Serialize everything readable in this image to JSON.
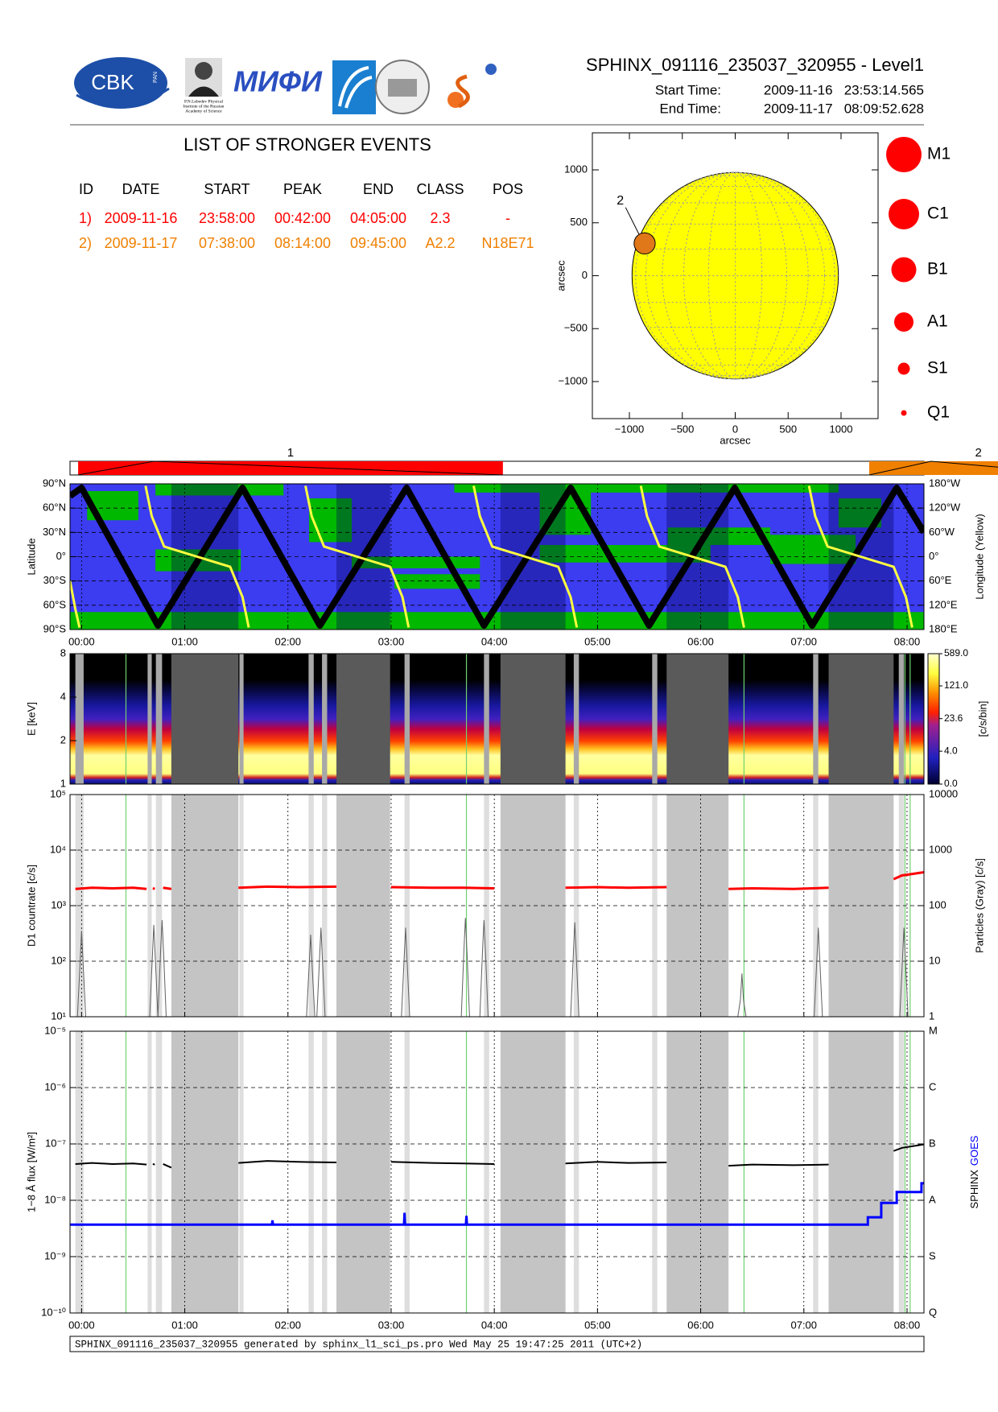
{
  "header": {
    "title": "SPHINX_091116_235037_320955 - Level1",
    "start_label": "Start Time:",
    "start": "2009-11-16   23:53:14.565",
    "end_label": "End Time:",
    "end": "2009-11-17   08:09:52.628"
  },
  "logos": {
    "cbk": "CBK",
    "pan": "PAN",
    "lebedev": [
      "P.N.Lebedev Physical",
      "Institute of the Russian",
      "Academy of Science"
    ],
    "mifi": "МИФИ"
  },
  "events_table": {
    "title": "LIST OF STRONGER EVENTS",
    "columns": [
      "ID",
      "DATE",
      "START",
      "PEAK",
      "END",
      "CLASS",
      "POS"
    ],
    "rows": [
      [
        "1)",
        "2009-11-16",
        "23:58:00",
        "00:42:00",
        "04:05:00",
        "2.3",
        "-"
      ],
      [
        "2)",
        "2009-11-17",
        "07:38:00",
        "08:14:00",
        "09:45:00",
        "A2.2",
        "N18E71"
      ]
    ]
  },
  "footer": "SPHINX_091116_235037_320955 generated by sphinx_l1_sci_ps.pro Wed May 25 19:47:25 2011 (UTC+2)",
  "chart_data": [
    {
      "type": "scatter",
      "xlabel": "arcsec",
      "ylabel": "arcsec",
      "xlim": [
        -1350,
        1350
      ],
      "ylim": [
        -1350,
        1350
      ],
      "xticks": [
        {
          "value": -1000,
          "label": "−1000"
        },
        {
          "value": -500,
          "label": "−500"
        },
        0,
        500,
        1000
      ],
      "yticks": [
        {
          "value": -1000,
          "label": "−1000"
        },
        {
          "value": -500,
          "label": "−500"
        },
        0,
        500,
        1000
      ],
      "disk_radius": 975,
      "disk_color": "#ffff00",
      "grid_color": "#999999",
      "x": [
        -856
      ],
      "y": [
        305
      ],
      "point_labels": [
        "2"
      ],
      "point_radius": 100,
      "point_color": "#e0781a",
      "classes": [
        "M1",
        "C1",
        "B1",
        "A1",
        "S1",
        "Q1"
      ],
      "class_color": "#ff0000"
    },
    {
      "type": "timeline",
      "xlim": [
        -0.112,
        8.164
      ],
      "events": [
        {
          "label": "1",
          "start": -0.0333,
          "peak": 0.7,
          "end": 4.0833,
          "color": "#ff0000"
        },
        {
          "label": "2",
          "start": 7.6333,
          "peak": 8.2333,
          "end": 9.75,
          "color": "#f08000"
        }
      ]
    },
    {
      "type": "line",
      "ylabel": "Latitude",
      "y2label": "Longitude (Yellow)",
      "background": "#3c3cf0",
      "region_color": "#00b800",
      "xlim": [
        -0.112,
        8.164
      ],
      "ylim": [
        -90,
        90
      ],
      "y2lim": [
        180,
        -180
      ],
      "xticks": [
        {
          "value": 0,
          "label": "00:00"
        },
        {
          "value": 1,
          "label": "01:00"
        },
        {
          "value": 2,
          "label": "02:00"
        },
        {
          "value": 3,
          "label": "03:00"
        },
        {
          "value": 4,
          "label": "04:00"
        },
        {
          "value": 5,
          "label": "05:00"
        },
        {
          "value": 6,
          "label": "06:00"
        },
        {
          "value": 7,
          "label": "07:00"
        },
        {
          "value": 8,
          "label": "08:00"
        }
      ],
      "yticks": [
        {
          "value": -90,
          "label": "90°S"
        },
        {
          "value": -60,
          "label": "60°S"
        },
        {
          "value": -30,
          "label": "30°S"
        },
        {
          "value": 0,
          "label": "0°"
        },
        {
          "value": 30,
          "label": "30°N"
        },
        {
          "value": 60,
          "label": "60°N"
        },
        {
          "value": 90,
          "label": "90°N"
        }
      ],
      "y2ticks": [
        {
          "value": -180,
          "label": "180°W"
        },
        {
          "value": -120,
          "label": "120°W"
        },
        {
          "value": -60,
          "label": "60°W"
        },
        {
          "value": 0,
          "label": "0°"
        },
        {
          "value": 60,
          "label": "60°E"
        },
        {
          "value": 120,
          "label": "120°E"
        },
        {
          "value": 180,
          "label": "180°E"
        }
      ],
      "series": [
        {
          "color": "#000000",
          "x": [
            -0.112,
            0.0,
            0.74,
            1.56,
            2.31,
            3.15,
            3.9,
            4.74,
            5.5,
            6.33,
            7.08,
            7.9,
            8.164
          ],
          "values": [
            75,
            85,
            -85,
            85,
            -85,
            85,
            -85,
            85,
            -85,
            85,
            -85,
            85,
            30
          ]
        },
        {
          "color": "#ffff40",
          "axis": "y2",
          "x": [
            -0.112,
            -0.06,
            -0.02,
            null,
            0.62,
            0.68,
            0.8,
            1.12,
            1.44,
            1.56,
            1.62,
            null,
            2.17,
            2.23,
            2.35,
            2.67,
            2.99,
            3.11,
            3.17,
            null,
            3.8,
            3.86,
            3.98,
            4.3,
            4.62,
            4.74,
            4.8,
            null,
            5.42,
            5.48,
            5.6,
            5.92,
            6.24,
            6.36,
            6.42,
            null,
            7.05,
            7.11,
            7.23,
            7.55,
            7.87,
            7.99,
            8.05
          ],
          "values": [
            60,
            130,
            175,
            null,
            -175,
            -100,
            -25,
            0,
            25,
            100,
            175,
            null,
            -175,
            -100,
            -25,
            0,
            25,
            100,
            175,
            null,
            -175,
            -100,
            -25,
            0,
            25,
            100,
            175,
            null,
            -175,
            -100,
            -25,
            0,
            25,
            100,
            175,
            null,
            -175,
            -100,
            -25,
            0,
            25,
            100,
            175
          ]
        }
      ]
    },
    {
      "type": "heatmap",
      "ylabel": "E [keV]",
      "clabel": "[c/s/bin]",
      "xlim": [
        -0.112,
        8.164
      ],
      "ylim": [
        1,
        8
      ],
      "log_y": true,
      "yticks": [
        1,
        2,
        4,
        8
      ],
      "clim": [
        0,
        589
      ],
      "cscale": "log1p",
      "cticks": [
        {
          "value": 0,
          "label": "0.0"
        },
        {
          "value": 4,
          "label": "4.0"
        },
        {
          "value": 23.6,
          "label": "23.6"
        },
        {
          "value": 121,
          "label": "121.0"
        },
        {
          "value": 589,
          "label": "589.0"
        }
      ],
      "dark_gaps": [
        [
          0.87,
          1.52
        ],
        [
          2.47,
          2.99
        ],
        [
          4.06,
          4.69
        ],
        [
          5.67,
          6.27
        ],
        [
          7.24,
          7.87
        ]
      ],
      "light_gaps": [
        [
          -0.06,
          0.02
        ],
        [
          0.64,
          0.68
        ],
        [
          0.72,
          0.78
        ],
        [
          1.53,
          1.57
        ],
        [
          2.2,
          2.25
        ],
        [
          2.33,
          2.38
        ],
        [
          3.13,
          3.18
        ],
        [
          3.9,
          3.95
        ],
        [
          4.77,
          4.82
        ],
        [
          5.53,
          5.58
        ],
        [
          7.09,
          7.14
        ],
        [
          7.92,
          7.97
        ]
      ],
      "green_lines": [
        0.43,
        3.73,
        6.42,
        7.98,
        8.03
      ]
    },
    {
      "type": "line",
      "ylabel": "D1 countrate [c/s]",
      "y2label": "Particles (Gray) [c/s]",
      "xlim": [
        -0.112,
        8.164
      ],
      "log_y": true,
      "ylim": [
        10,
        100000
      ],
      "y2lim": [
        1,
        10000
      ],
      "yticks": [
        {
          "value": 10,
          "label": "10¹"
        },
        {
          "value": 100,
          "label": "10²"
        },
        {
          "value": 1000,
          "label": "10³"
        },
        {
          "value": 10000,
          "label": "10⁴"
        },
        {
          "value": 100000,
          "label": "10⁵"
        }
      ],
      "y2ticks": [
        1,
        10,
        100,
        1000,
        10000
      ],
      "series": [
        {
          "color": "#ff0000",
          "x": [
            -0.06,
            0.1,
            0.3,
            0.5,
            0.63,
            null,
            0.69,
            0.71,
            null,
            0.79,
            0.87,
            null,
            1.52,
            1.8,
            2.1,
            2.47,
            null,
            3.0,
            3.4,
            3.7,
            4.0,
            null,
            4.69,
            5.0,
            5.3,
            5.67,
            null,
            6.27,
            6.5,
            6.9,
            7.24,
            null,
            7.87,
            7.95,
            8.0,
            8.164
          ],
          "values": [
            2000,
            2100,
            2050,
            2100,
            2000,
            null,
            2050,
            2000,
            null,
            2100,
            2000,
            null,
            2100,
            2200,
            2150,
            2200,
            null,
            2150,
            2100,
            2100,
            2050,
            null,
            2100,
            2150,
            2100,
            2150,
            null,
            2000,
            2050,
            2000,
            2100,
            null,
            3000,
            3500,
            3600,
            4000
          ]
        },
        {
          "color": "#606060",
          "axis": "y2",
          "x": [
            -0.04,
            -0.015,
            0.0,
            0.015,
            0.04,
            0.66,
            0.685,
            0.7,
            0.715,
            0.74,
            0.74,
            0.765,
            0.78,
            0.795,
            0.82,
            2.18,
            2.205,
            2.22,
            2.235,
            2.26,
            2.28,
            2.305,
            2.32,
            2.335,
            2.36,
            3.1,
            3.125,
            3.14,
            3.155,
            3.18,
            3.68,
            3.705,
            3.72,
            3.735,
            3.76,
            3.86,
            3.885,
            3.9,
            3.915,
            3.94,
            4.74,
            4.765,
            4.78,
            4.795,
            4.82,
            6.36,
            6.385,
            6.4,
            6.415,
            6.44,
            7.1,
            7.125,
            7.14,
            7.155,
            7.18,
            7.93,
            7.955,
            7.97,
            7.985,
            8.01
          ],
          "values": [
            1,
            9,
            35,
            9,
            1,
            1,
            11,
            45,
            11,
            1,
            1,
            14,
            55,
            14,
            1,
            1,
            8,
            30,
            8,
            1,
            1,
            10,
            40,
            10,
            1,
            1,
            10,
            40,
            10,
            1,
            1,
            15,
            60,
            15,
            1,
            1,
            14,
            55,
            14,
            1,
            1,
            12,
            50,
            12,
            1,
            1,
            2,
            6,
            2,
            1,
            1,
            10,
            40,
            10,
            1,
            1,
            10,
            40,
            10,
            1
          ]
        }
      ]
    },
    {
      "type": "line",
      "ylabel": "1−8 Å flux [W/m²]",
      "xlim": [
        -0.112,
        8.164
      ],
      "log_y": true,
      "ylim": [
        1e-10,
        1e-05
      ],
      "y2lim": [
        1e-10,
        1e-05
      ],
      "xticks": [
        {
          "value": 0,
          "label": "00:00"
        },
        {
          "value": 1,
          "label": "01:00"
        },
        {
          "value": 2,
          "label": "02:00"
        },
        {
          "value": 3,
          "label": "03:00"
        },
        {
          "value": 4,
          "label": "04:00"
        },
        {
          "value": 5,
          "label": "05:00"
        },
        {
          "value": 6,
          "label": "06:00"
        },
        {
          "value": 7,
          "label": "07:00"
        },
        {
          "value": 8,
          "label": "08:00"
        }
      ],
      "yticks": [
        {
          "value": 1e-10,
          "label": "10⁻¹⁰"
        },
        {
          "value": 1e-09,
          "label": "10⁻⁹"
        },
        {
          "value": 1e-08,
          "label": "10⁻⁸"
        },
        {
          "value": 1e-07,
          "label": "10⁻⁷"
        },
        {
          "value": 1e-06,
          "label": "10⁻⁶"
        },
        {
          "value": 1e-05,
          "label": "10⁻⁵"
        }
      ],
      "y2ticks": [
        {
          "value": 1e-10,
          "label": "Q"
        },
        {
          "value": 1e-09,
          "label": "S"
        },
        {
          "value": 1e-08,
          "label": "A"
        },
        {
          "value": 1e-07,
          "label": "B"
        },
        {
          "value": 1e-06,
          "label": "C"
        },
        {
          "value": 1e-05,
          "label": "M"
        }
      ],
      "series": [
        {
          "name": "SPHINX",
          "color": "#000000",
          "x": [
            -0.06,
            0.1,
            0.3,
            0.5,
            0.63,
            null,
            0.69,
            0.71,
            null,
            0.79,
            0.87,
            null,
            1.52,
            1.8,
            2.1,
            2.47,
            null,
            3.0,
            3.4,
            3.7,
            4.0,
            null,
            4.69,
            5.0,
            5.3,
            5.67,
            null,
            6.27,
            6.5,
            6.9,
            7.24,
            null,
            7.87,
            7.95,
            8.0,
            8.164
          ],
          "values": [
            4.4e-08,
            4.6e-08,
            4.4e-08,
            4.5e-08,
            4.3e-08,
            null,
            4.4e-08,
            4.3e-08,
            null,
            4.4e-08,
            3.8e-08,
            null,
            4.6e-08,
            5e-08,
            4.8e-08,
            4.7e-08,
            null,
            4.8e-08,
            4.6e-08,
            4.5e-08,
            4.4e-08,
            null,
            4.5e-08,
            4.8e-08,
            4.6e-08,
            4.7e-08,
            null,
            4.1e-08,
            4.3e-08,
            4.2e-08,
            4.3e-08,
            null,
            7.5e-08,
            8.5e-08,
            8.8e-08,
            9.8e-08
          ]
        },
        {
          "name": "GOES",
          "color": "#0000ff",
          "x": [
            -0.112,
            1.845,
            1.85,
            1.855,
            3.125,
            3.13,
            3.135,
            3.725,
            3.73,
            3.735,
            7.62,
            7.62,
            7.75,
            7.75,
            7.9,
            7.9,
            8.14,
            8.14,
            8.164
          ],
          "values": [
            3.7e-09,
            3.7e-09,
            4.4e-09,
            3.7e-09,
            3.7e-09,
            6e-09,
            3.7e-09,
            3.7e-09,
            5.3e-09,
            3.7e-09,
            3.7e-09,
            5e-09,
            5e-09,
            9e-09,
            9e-09,
            1.4e-08,
            1.4e-08,
            2e-08,
            2e-08
          ]
        }
      ]
    }
  ]
}
